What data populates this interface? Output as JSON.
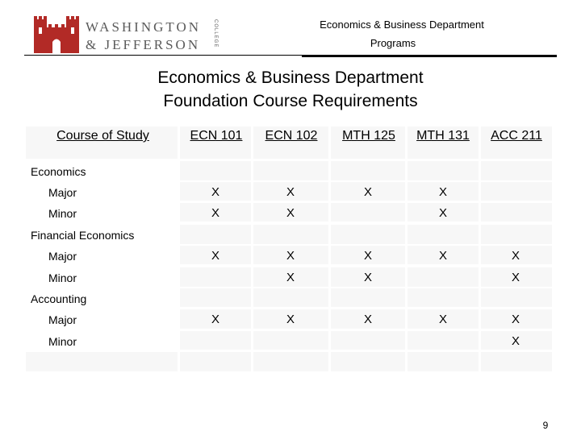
{
  "logo": {
    "line1": "WASHINGTON",
    "line2": "& JEFFERSON",
    "side": "COLLEGE",
    "brand_color": "#b22a26"
  },
  "header": {
    "department": "Economics & Business Department",
    "subtitle": "Programs"
  },
  "title": {
    "line1": "Economics & Business Department",
    "line2": "Foundation Course Requirements"
  },
  "table": {
    "corner": "Course of Study",
    "columns": [
      "ECN 101",
      "ECN 102",
      "MTH 125",
      "MTH 131",
      "ACC 211"
    ],
    "rows": [
      {
        "label": "Economics",
        "group": true,
        "marks": [
          "",
          "",
          "",
          "",
          ""
        ]
      },
      {
        "label": "Major",
        "group": false,
        "marks": [
          "X",
          "X",
          "X",
          "X",
          ""
        ]
      },
      {
        "label": "Minor",
        "group": false,
        "marks": [
          "X",
          "X",
          "",
          "X",
          ""
        ]
      },
      {
        "label": "Financial Economics",
        "group": true,
        "marks": [
          "",
          "",
          "",
          "",
          ""
        ]
      },
      {
        "label": "Major",
        "group": false,
        "marks": [
          "X",
          "X",
          "X",
          "X",
          "X"
        ]
      },
      {
        "label": "Minor",
        "group": false,
        "marks": [
          "",
          "X",
          "X",
          "",
          "X"
        ]
      },
      {
        "label": "Accounting",
        "group": true,
        "marks": [
          "",
          "",
          "",
          "",
          ""
        ]
      },
      {
        "label": "Major",
        "group": false,
        "marks": [
          "X",
          "X",
          "X",
          "X",
          "X"
        ]
      },
      {
        "label": "Minor",
        "group": false,
        "marks": [
          "",
          "",
          "",
          "",
          "X"
        ]
      }
    ]
  },
  "page_number": "9"
}
